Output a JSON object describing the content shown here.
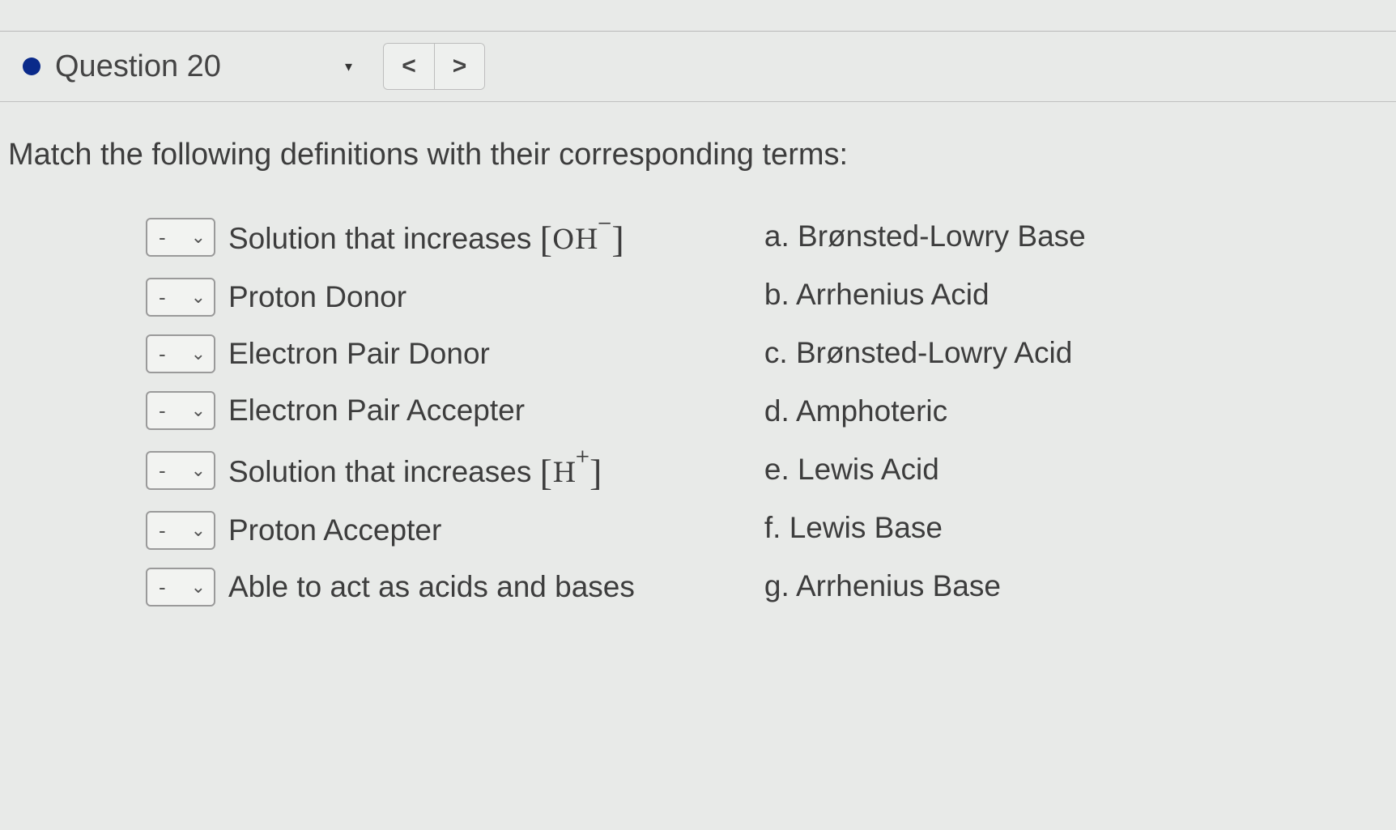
{
  "header": {
    "title": "Question 20",
    "bullet_color": "#0a2a8a",
    "prev_symbol": "<",
    "next_symbol": ">",
    "dropdown_symbol": "▾"
  },
  "prompt": "Match the following definitions with their corresponding terms:",
  "select_placeholder": "-",
  "definitions": [
    {
      "text_pre": "Solution that increases ",
      "math_html": "[OH<sup>−</sup>]",
      "has_math": true
    },
    {
      "text_pre": "Proton Donor",
      "has_math": false
    },
    {
      "text_pre": "Electron Pair Donor",
      "has_math": false
    },
    {
      "text_pre": "Electron Pair Accepter",
      "has_math": false
    },
    {
      "text_pre": "Solution that increases ",
      "math_html": "[H<sup>+</sup>]",
      "has_math": true
    },
    {
      "text_pre": "Proton Accepter",
      "has_math": false
    },
    {
      "text_pre": "Able to act as acids and bases",
      "has_math": false
    }
  ],
  "terms": [
    {
      "letter": "a.",
      "label": "Brønsted-Lowry Base"
    },
    {
      "letter": "b.",
      "label": "Arrhenius Acid"
    },
    {
      "letter": "c.",
      "label": "Brønsted-Lowry Acid"
    },
    {
      "letter": "d.",
      "label": "Amphoteric"
    },
    {
      "letter": "e.",
      "label": "Lewis Acid"
    },
    {
      "letter": "f.",
      "label": "Lewis Base"
    },
    {
      "letter": "g.",
      "label": "Arrhenius Base"
    }
  ],
  "colors": {
    "background": "#e8eae8",
    "text": "#3d3d3d",
    "border": "#bdbdbd",
    "select_border": "#9a9a9a"
  }
}
